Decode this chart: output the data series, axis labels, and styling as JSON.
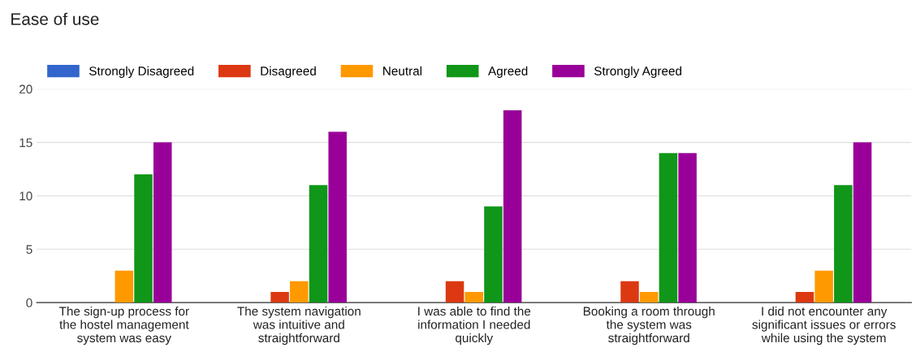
{
  "chart_data": {
    "type": "bar",
    "title": "Ease of use",
    "categories": [
      "The sign-up process for\nthe hostel management\nsystem was easy",
      "The system navigation\nwas intuitive and\nstraightforward",
      "I was able to find the\ninformation I needed\nquickly",
      "Booking a room through\nthe system was\nstraightforward",
      "I did not encounter any\nsignificant issues or errors\nwhile using the system"
    ],
    "series": [
      {
        "name": "Strongly Disagreed",
        "color": "#3366cc",
        "values": [
          0,
          0,
          0,
          0,
          0
        ]
      },
      {
        "name": "Disagreed",
        "color": "#dc3912",
        "values": [
          0,
          1,
          2,
          2,
          1
        ]
      },
      {
        "name": "Neutral",
        "color": "#ff9900",
        "values": [
          3,
          2,
          1,
          1,
          3
        ]
      },
      {
        "name": "Agreed",
        "color": "#109618",
        "values": [
          12,
          11,
          9,
          14,
          11
        ]
      },
      {
        "name": "Strongly Agreed",
        "color": "#990099",
        "values": [
          15,
          16,
          18,
          14,
          15
        ]
      }
    ],
    "ylim": [
      0,
      20
    ],
    "yticks": [
      0,
      5,
      10,
      15,
      20
    ],
    "grid": "y",
    "legend": "top left"
  }
}
